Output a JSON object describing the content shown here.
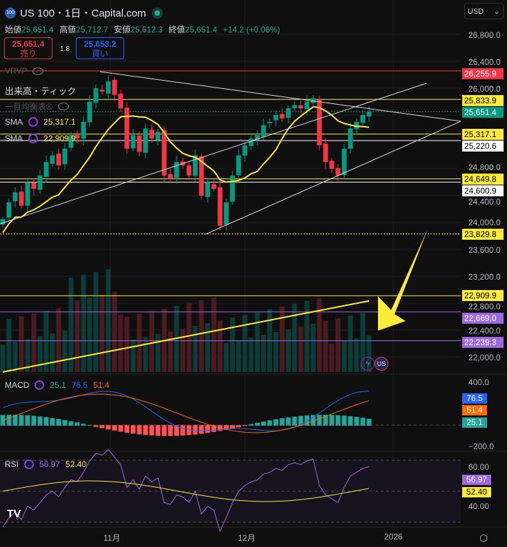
{
  "header": {
    "logo": "100",
    "title": "US 100・1日・Capital.com",
    "status_color": "#22ab94"
  },
  "ohlc": {
    "open_label": "始値",
    "open": "25,651.4",
    "high_label": "高値",
    "high": "25,712.7",
    "low_label": "安値",
    "low": "25,612.3",
    "close_label": "終値",
    "close": "25,651.4",
    "change": "+14.2 (+0.06%)"
  },
  "trade": {
    "sell_price": "25,651.4",
    "sell_label": "売り",
    "spread": "1.8",
    "buy_price": "25,653.2",
    "buy_label": "買い"
  },
  "legend": {
    "vrvp": "VRVP",
    "volume": "出来高・ティック",
    "ichimoku": "一目均衡表®",
    "sma1_label": "SMA",
    "sma1_value": "25,317.1",
    "sma2_label": "SMA",
    "sma2_value": "22,909.9"
  },
  "currency": "USD",
  "price_axis": [
    "26,800.0",
    "26,400.0",
    "26,000.0",
    "24,800.0",
    "24,400.0",
    "24,000.0",
    "23,600.0",
    "23,200.0",
    "22,800.0",
    "22,400.0",
    "22,000.0"
  ],
  "price_tags": [
    {
      "value": "26,255.9",
      "bg": "#f23645",
      "fg": "#ffffff",
      "price": 26255.9
    },
    {
      "value": "25,833.9",
      "bg": "#ffeb3b",
      "fg": "#000000",
      "price": 25833.9
    },
    {
      "value": "25,651.4",
      "bg": "#089981",
      "fg": "#ffffff",
      "price": 25651.4
    },
    {
      "value": "25,317.1",
      "bg": "#ffeb3b",
      "fg": "#000000",
      "price": 25317.1
    },
    {
      "value": "25,220.6",
      "bg": "#ffffff",
      "fg": "#000000",
      "price": 25220.6
    },
    {
      "value": "24,649.8",
      "bg": "#ffeb3b",
      "fg": "#000000",
      "price": 24649.8
    },
    {
      "value": "24,600.9",
      "bg": "#ffffff",
      "fg": "#000000",
      "price": 24600.9
    },
    {
      "value": "23,829.8",
      "bg": "#ffeb3b",
      "fg": "#000000",
      "price": 23829.8
    },
    {
      "value": "22,909.9",
      "bg": "#ffeb3b",
      "fg": "#000000",
      "price": 22909.9
    },
    {
      "value": "22,669.0",
      "bg": "#9c6ade",
      "fg": "#ffffff",
      "price": 22669.0
    },
    {
      "value": "22,239.3",
      "bg": "#9c6ade",
      "fg": "#ffffff",
      "price": 22239.3
    }
  ],
  "macd": {
    "label": "MACD",
    "v1": "25.1",
    "v2": "76.5",
    "v3": "51.4",
    "axis_top": "400.0",
    "axis_bottom": "−200.0",
    "macd_color": "#2962ff",
    "signal_color": "#ff6d00",
    "hist_color": "#26a69a"
  },
  "rsi": {
    "label": "RSI",
    "v1": "56.97",
    "v2": "52.40",
    "axis_40": "40.00",
    "axis_60": "60.00"
  },
  "time_axis": [
    "11月",
    "12月",
    "2026"
  ],
  "colors": {
    "up": "#089981",
    "down": "#f23645",
    "sma": "#ffeb3b"
  },
  "closes": [
    24050,
    24300,
    24450,
    24250,
    24600,
    24500,
    24700,
    24900,
    25000,
    24850,
    25100,
    25300,
    25250,
    25500,
    25800,
    26000,
    25950,
    26100,
    25900,
    25700,
    25100,
    25300,
    25050,
    25400,
    25250,
    25350,
    24700,
    24650,
    24900,
    24850,
    24700,
    25000,
    24400,
    24600,
    24500,
    23950,
    24300,
    24700,
    25000,
    25150,
    25250,
    25300,
    25450,
    25500,
    25600,
    25550,
    25700,
    25750,
    25700,
    25800,
    25850,
    25150,
    24900,
    24800,
    24700,
    25100,
    25400,
    25500,
    25600,
    25651
  ]
}
